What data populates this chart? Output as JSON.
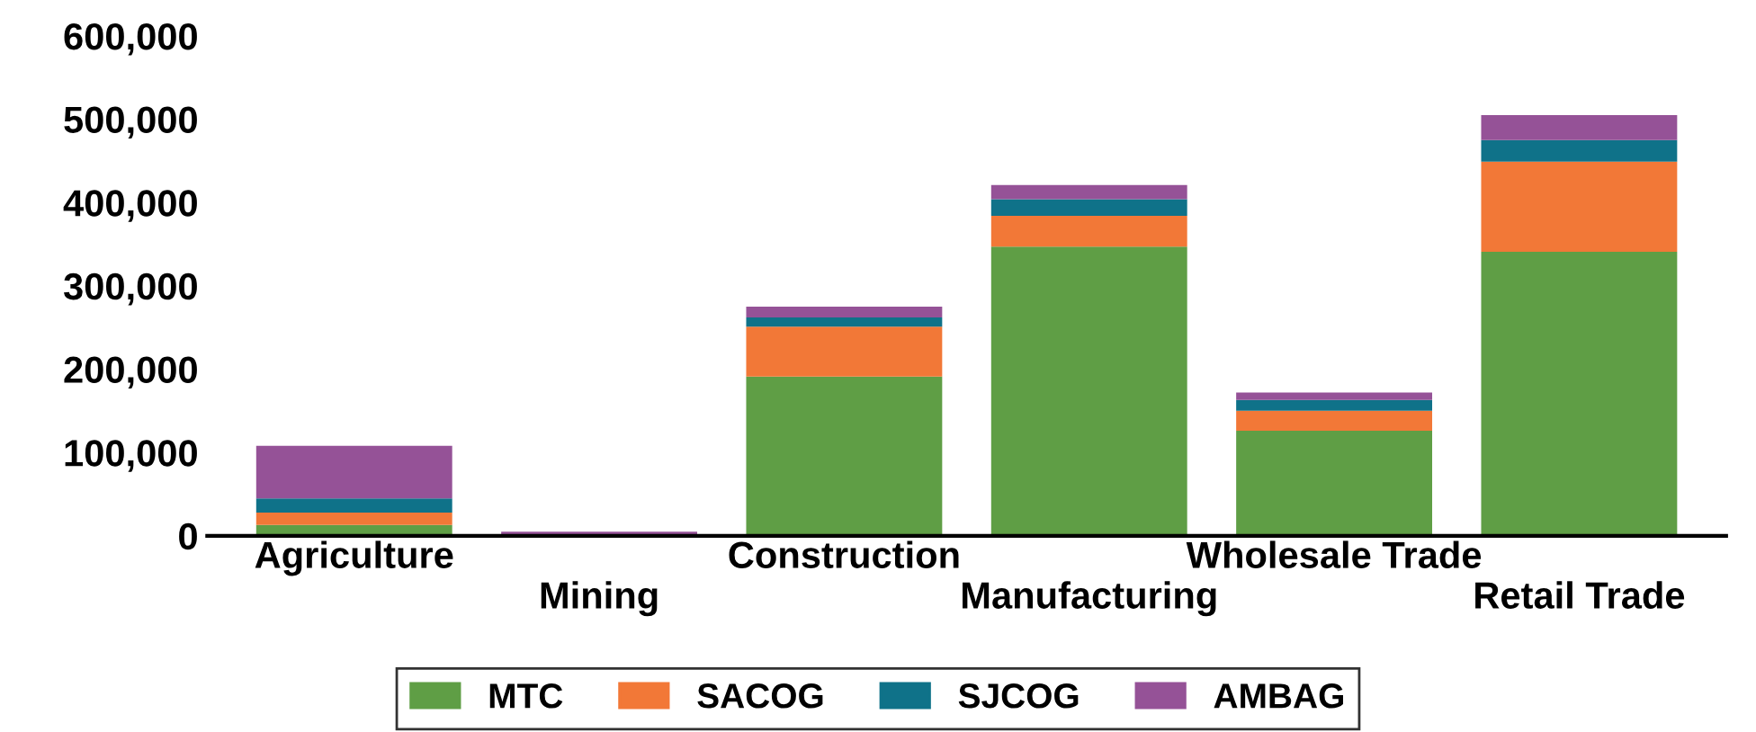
{
  "chart_data": {
    "type": "bar",
    "stacked": true,
    "categories": [
      "Agriculture",
      "Mining",
      "Construction",
      "Manufacturing",
      "Wholesale Trade",
      "Retail Trade"
    ],
    "series": [
      {
        "name": "MTC",
        "color": "#5f9e45",
        "values": [
          13000,
          null,
          191000,
          347000,
          126000,
          341000
        ]
      },
      {
        "name": "SACOG",
        "color": "#f27837",
        "values": [
          15000,
          2000,
          60000,
          37000,
          24000,
          108000
        ]
      },
      {
        "name": "SJCOG",
        "color": "#0f7289",
        "values": [
          17000,
          null,
          11000,
          20000,
          13000,
          26000
        ]
      },
      {
        "name": "AMBAG",
        "color": "#955297",
        "values": [
          63000,
          3000,
          13000,
          17000,
          9000,
          30000
        ]
      }
    ],
    "ylim": [
      0,
      600000
    ],
    "yticks": [
      {
        "value": 0,
        "label": "0"
      },
      {
        "value": 100000,
        "label": "100,000"
      },
      {
        "value": 200000,
        "label": "200,000"
      },
      {
        "value": 300000,
        "label": "300,000"
      },
      {
        "value": 400000,
        "label": "400,000"
      },
      {
        "value": 500000,
        "label": "500,000"
      },
      {
        "value": 600000,
        "label": "600,000"
      }
    ],
    "grid": false,
    "legend": "bottom"
  }
}
